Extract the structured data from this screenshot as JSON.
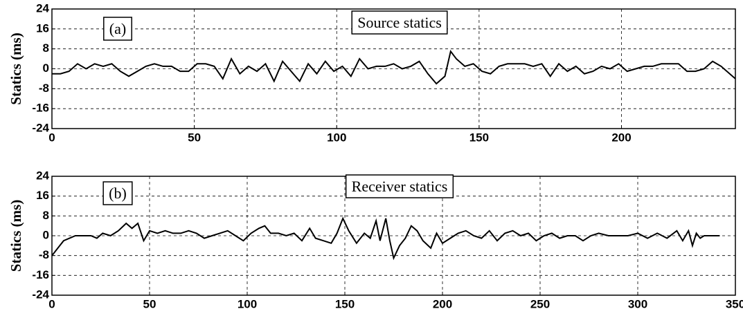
{
  "chart_data": [
    {
      "type": "line",
      "ylabel": "Statics (ms)",
      "annotations": [
        "(a)",
        "Source statics"
      ],
      "xlim": [
        0,
        240
      ],
      "xticks": [
        0,
        50,
        100,
        150,
        200
      ],
      "ylim": [
        -24,
        24
      ],
      "yticks": [
        -24,
        -16,
        -8,
        0,
        8,
        16,
        24
      ],
      "grid": true,
      "series": [
        {
          "color": "#000000",
          "x": [
            0,
            3,
            6,
            9,
            12,
            15,
            18,
            21,
            24,
            27,
            30,
            33,
            36,
            39,
            42,
            45,
            48,
            51,
            54,
            57,
            60,
            63,
            66,
            69,
            72,
            75,
            78,
            81,
            84,
            87,
            90,
            93,
            96,
            99,
            102,
            105,
            108,
            111,
            114,
            117,
            120,
            123,
            126,
            129,
            132,
            135,
            138,
            140,
            142,
            145,
            148,
            151,
            154,
            157,
            160,
            163,
            166,
            169,
            172,
            175,
            178,
            181,
            184,
            187,
            190,
            193,
            196,
            199,
            202,
            205,
            208,
            211,
            214,
            217,
            220,
            223,
            226,
            229,
            232,
            235,
            238,
            240
          ],
          "values": [
            -2,
            -2,
            -1,
            2,
            0,
            2,
            1,
            2,
            -1,
            -3,
            -1,
            1,
            2,
            1,
            1,
            -1,
            -1,
            2,
            2,
            1,
            -4,
            4,
            -2,
            1,
            -1,
            2,
            -5,
            3,
            -1,
            -5,
            2,
            -2,
            3,
            -1,
            1,
            -3,
            4,
            0,
            1,
            1,
            2,
            0,
            1,
            3,
            -2,
            -6,
            -3,
            7,
            4,
            1,
            2,
            -1,
            -2,
            1,
            2,
            2,
            2,
            1,
            2,
            -3,
            2,
            -1,
            1,
            -2,
            -1,
            1,
            0,
            2,
            -1,
            0,
            1,
            1,
            2,
            2,
            2,
            -1,
            -1,
            0,
            3,
            1,
            -2,
            -4
          ]
        }
      ]
    },
    {
      "type": "line",
      "ylabel": "Statics (ms)",
      "annotations": [
        "(b)",
        "Receiver statics"
      ],
      "xlim": [
        0,
        350
      ],
      "xticks": [
        0,
        50,
        100,
        150,
        200,
        250,
        300,
        350
      ],
      "ylim": [
        -24,
        24
      ],
      "yticks": [
        -24,
        -16,
        -8,
        0,
        8,
        16,
        24
      ],
      "grid": true,
      "series": [
        {
          "color": "#000000",
          "x": [
            0,
            3,
            6,
            9,
            12,
            16,
            20,
            23,
            26,
            30,
            34,
            38,
            41,
            44,
            47,
            50,
            54,
            58,
            62,
            66,
            70,
            74,
            78,
            82,
            86,
            90,
            94,
            98,
            102,
            106,
            109,
            112,
            116,
            120,
            124,
            128,
            132,
            135,
            139,
            143,
            146,
            149,
            152,
            156,
            160,
            163,
            166,
            168,
            171,
            173,
            175,
            178,
            181,
            184,
            187,
            190,
            194,
            197,
            200,
            204,
            208,
            212,
            216,
            220,
            224,
            228,
            232,
            236,
            240,
            244,
            248,
            252,
            256,
            260,
            264,
            268,
            272,
            276,
            280,
            285,
            290,
            295,
            300,
            305,
            310,
            315,
            320,
            323,
            326,
            328,
            330,
            332,
            334,
            337,
            342
          ],
          "values": [
            -8,
            -5,
            -2,
            -1,
            0,
            0,
            0,
            -1,
            1,
            0,
            2,
            5,
            3,
            5,
            -2,
            2,
            1,
            2,
            1,
            1,
            2,
            1,
            -1,
            0,
            1,
            2,
            0,
            -2,
            1,
            3,
            4,
            1,
            1,
            0,
            1,
            -2,
            3,
            -1,
            -2,
            -3,
            1,
            7,
            2,
            -3,
            1,
            -1,
            6,
            -2,
            7,
            -2,
            -9,
            -4,
            -1,
            4,
            2,
            -2,
            -5,
            1,
            -3,
            -1,
            1,
            2,
            0,
            -1,
            2,
            -2,
            1,
            2,
            0,
            1,
            -2,
            0,
            1,
            -1,
            0,
            0,
            -2,
            0,
            1,
            0,
            0,
            0,
            1,
            -1,
            1,
            -1,
            2,
            -2,
            2,
            -4,
            1,
            -1,
            0,
            0,
            0
          ]
        }
      ]
    }
  ]
}
